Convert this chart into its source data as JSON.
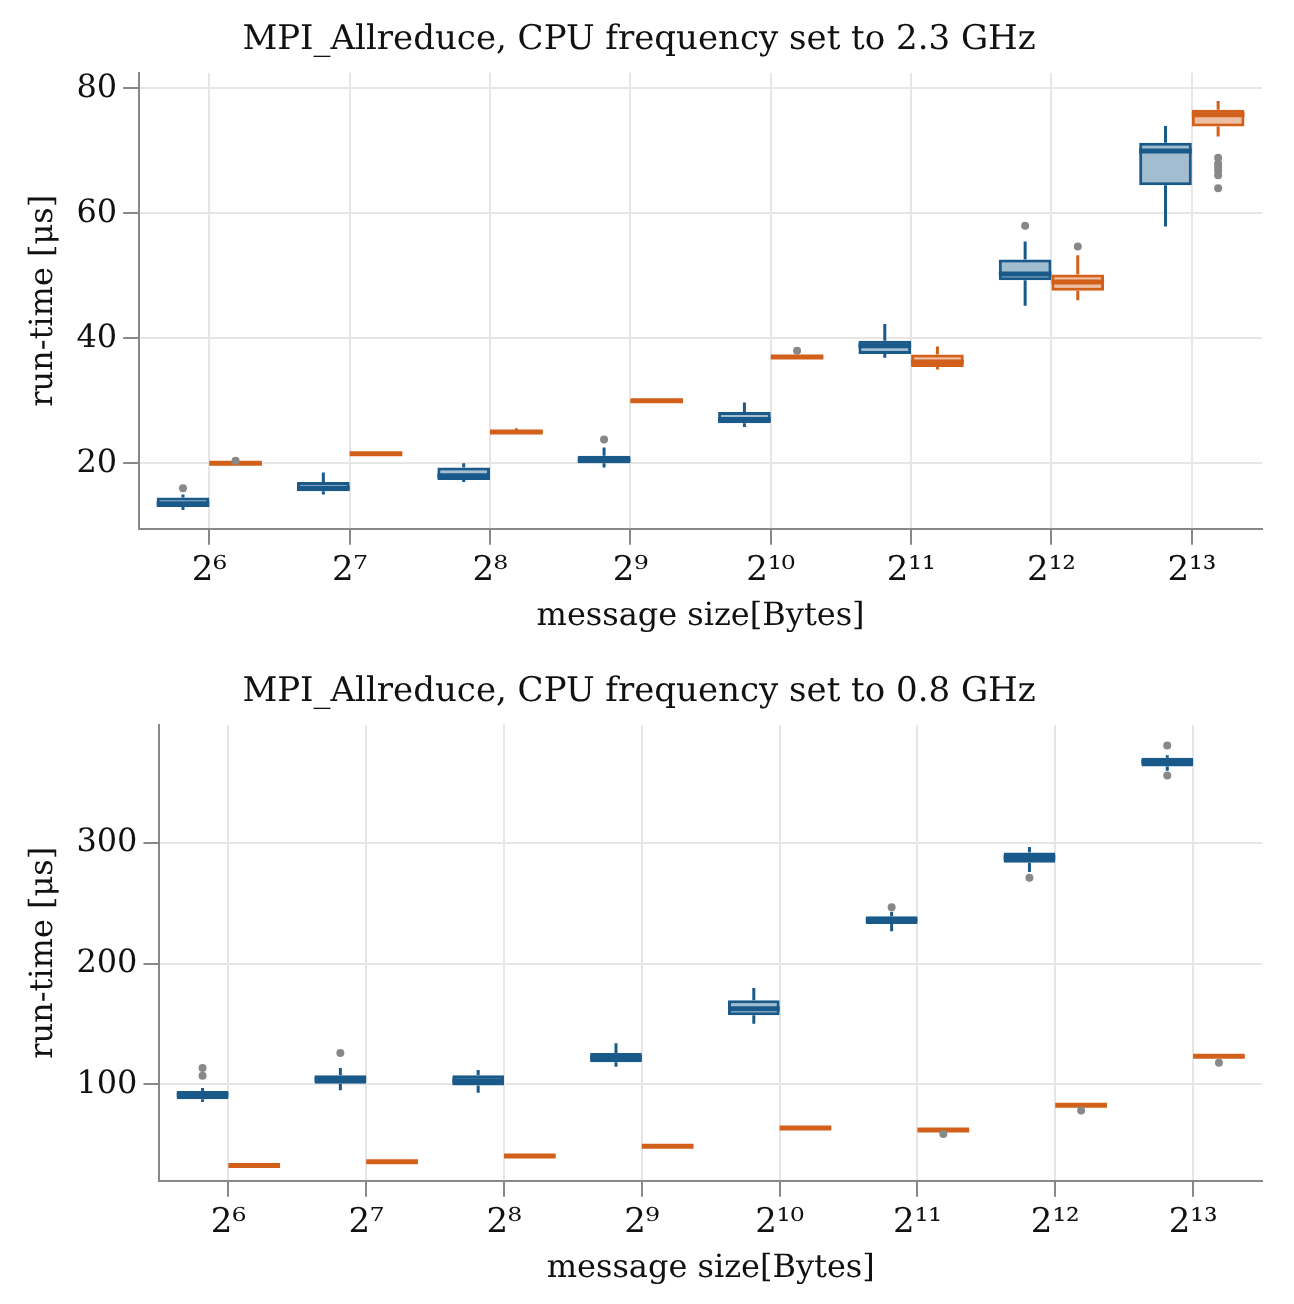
{
  "chart_data": [
    {
      "type": "box",
      "title": "MPI_Allreduce, CPU frequency set to 2.3 GHz",
      "xlabel": "message size[Bytes]",
      "ylabel": "run-time [μs]",
      "categories": [
        "2⁶",
        "2⁷",
        "2⁸",
        "2⁹",
        "2¹⁰",
        "2¹¹",
        "2¹²",
        "2¹³"
      ],
      "ylim": [
        9.5,
        82.5
      ],
      "yticks": [
        20,
        40,
        60,
        80
      ],
      "grid": true,
      "series": [
        {
          "color": "#1a5a8a",
          "boxes": [
            {
              "low": 12.5,
              "q1": 13,
              "median": 13.5,
              "q3": 14.5,
              "high": 15,
              "outliers": [
                16
              ]
            },
            {
              "low": 15,
              "q1": 15.5,
              "median": 16,
              "q3": 17,
              "high": 18.5
            },
            {
              "low": 17,
              "q1": 17.3,
              "median": 18,
              "q3": 19.3,
              "high": 20
            },
            {
              "low": 19.3,
              "q1": 20,
              "median": 20.5,
              "q3": 21.2,
              "high": 22.5,
              "outliers": [
                23.8
              ]
            },
            {
              "low": 25.8,
              "q1": 26.4,
              "median": 27,
              "q3": 28.2,
              "high": 29.7
            },
            {
              "low": 36.9,
              "q1": 37.5,
              "median": 38.8,
              "q3": 39.6,
              "high": 42.3
            },
            {
              "low": 45.2,
              "q1": 49.3,
              "median": 50.3,
              "q3": 52.6,
              "high": 55.5,
              "outliers": [
                58
              ]
            },
            {
              "low": 57.9,
              "q1": 64.5,
              "median": 70,
              "q3": 71.3,
              "high": 74
            }
          ]
        },
        {
          "color": "#d2601a",
          "boxes": [
            {
              "low": 19.8,
              "q1": 19.8,
              "median": 20,
              "q3": 20.1,
              "high": 20.2,
              "outliers": [
                20.4
              ]
            },
            {
              "low": 21.3,
              "q1": 21.3,
              "median": 21.5,
              "q3": 21.7,
              "high": 21.7
            },
            {
              "low": 24.7,
              "q1": 24.7,
              "median": 25,
              "q3": 25.3,
              "high": 25.6
            },
            {
              "low": 29.8,
              "q1": 29.8,
              "median": 30,
              "q3": 30.2,
              "high": 30.2
            },
            {
              "low": 36.8,
              "q1": 36.8,
              "median": 37,
              "q3": 37.2,
              "high": 37.2,
              "outliers": [
                38
              ]
            },
            {
              "low": 35,
              "q1": 35.4,
              "median": 36.2,
              "q3": 37.4,
              "high": 38.7
            },
            {
              "low": 46.1,
              "q1": 47.6,
              "median": 49,
              "q3": 50.2,
              "high": 53.3,
              "outliers": [
                54.7
              ]
            },
            {
              "low": 72.3,
              "q1": 73.9,
              "median": 75.8,
              "q3": 76.6,
              "high": 78,
              "outliers": [
                68.9,
                68,
                67.4,
                66.8,
                66.1,
                64
              ]
            }
          ]
        }
      ]
    },
    {
      "type": "box",
      "title": "MPI_Allreduce, CPU frequency set to 0.8 GHz",
      "xlabel": "message size[Bytes]",
      "ylabel": "run-time [μs]",
      "categories": [
        "2⁶",
        "2⁷",
        "2⁸",
        "2⁹",
        "2¹⁰",
        "2¹¹",
        "2¹²",
        "2¹³"
      ],
      "ylim": [
        20,
        398
      ],
      "yticks": [
        100,
        200,
        300
      ],
      "grid": true,
      "series": [
        {
          "color": "#1a5a8a",
          "boxes": [
            {
              "low": 85.4,
              "q1": 87.5,
              "median": 91.3,
              "q3": 94.5,
              "high": 97,
              "outliers": [
                107,
                113.5
              ]
            },
            {
              "low": 95.1,
              "q1": 100.5,
              "median": 104.2,
              "q3": 107.4,
              "high": 113.5,
              "outliers": [
                126
              ]
            },
            {
              "low": 92.9,
              "q1": 99,
              "median": 103,
              "q3": 107.4,
              "high": 111.8
            },
            {
              "low": 114.6,
              "q1": 118.3,
              "median": 122,
              "q3": 126,
              "high": 134
            },
            {
              "low": 150.2,
              "q1": 157.2,
              "median": 162.6,
              "q3": 169.7,
              "high": 179.9
            },
            {
              "low": 226.9,
              "q1": 232.9,
              "median": 236.1,
              "q3": 239.4,
              "high": 243,
              "outliers": [
                246.8
              ]
            },
            {
              "low": 276,
              "q1": 283.6,
              "median": 288,
              "q3": 292.2,
              "high": 296.6,
              "outliers": [
                271.2
              ]
            },
            {
              "low": 360,
              "q1": 363.5,
              "median": 367.4,
              "q3": 370.7,
              "high": 372.8,
              "outliers": [
                380.9,
                356
              ]
            }
          ]
        },
        {
          "color": "#d2601a",
          "boxes": [
            {
              "low": 32,
              "q1": 32,
              "median": 32.6,
              "q3": 33,
              "high": 33
            },
            {
              "low": 35,
              "q1": 35,
              "median": 35.7,
              "q3": 36,
              "high": 36
            },
            {
              "low": 40,
              "q1": 40,
              "median": 40.5,
              "q3": 41,
              "high": 41
            },
            {
              "low": 48,
              "q1": 48,
              "median": 48.6,
              "q3": 49,
              "high": 49
            },
            {
              "low": 63,
              "q1": 63,
              "median": 63.7,
              "q3": 64,
              "high": 64
            },
            {
              "low": 61.5,
              "q1": 61.5,
              "median": 62.1,
              "q3": 62.5,
              "high": 62.5,
              "outliers": [
                58.8
              ]
            },
            {
              "low": 82,
              "q1": 82,
              "median": 82.7,
              "q3": 83,
              "high": 83,
              "outliers": [
                78.3
              ]
            },
            {
              "low": 122.5,
              "q1": 122.5,
              "median": 123.2,
              "q3": 123.7,
              "high": 123.7,
              "outliers": [
                117.8
              ]
            }
          ]
        }
      ]
    }
  ]
}
